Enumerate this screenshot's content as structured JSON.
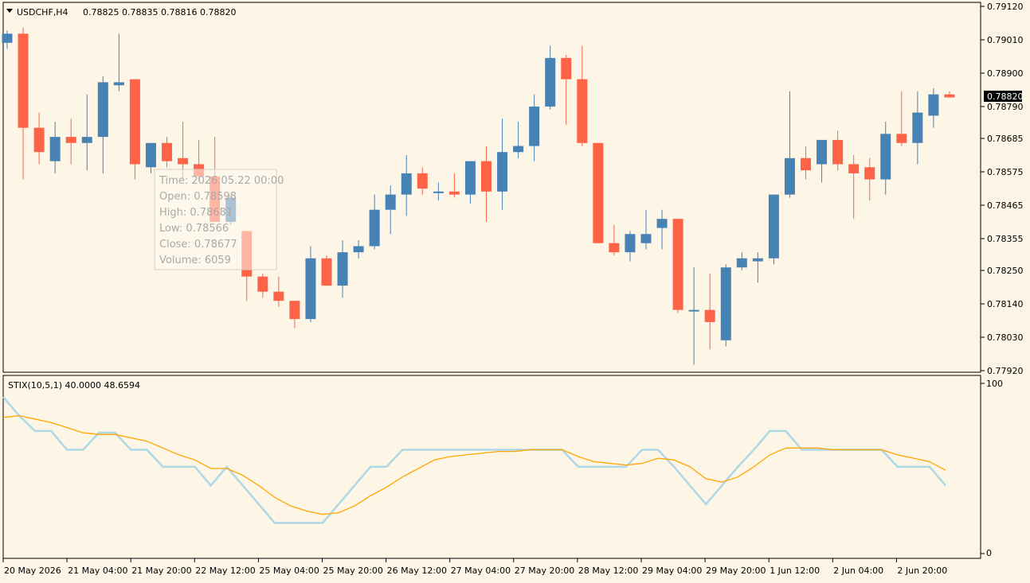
{
  "header": {
    "symbol_label": "USDCHF,H4",
    "ohlc_label": "0.78825 0.78835 0.78816 0.78820"
  },
  "indicator": {
    "label": "STIX(10,5,1) 40.0000 48.6594",
    "scale_top": "100",
    "scale_bottom": "0"
  },
  "current_price": "0.78820",
  "tooltip": {
    "time": "Time: 2026.05.22 00:00",
    "open": "Open: 0.78598",
    "high": "High: 0.78681",
    "low": "Low:  0.78566",
    "close": "Close: 0.78677",
    "volume": "Volume: 6059"
  },
  "colors": {
    "background": "#fdf5e6",
    "bull": "#4682b4",
    "bear": "#ff6347",
    "stix_line": "#add8e6",
    "signal_line": "#ffa500",
    "axis": "#000000",
    "price_tag_bg": "#000000",
    "price_tag_text": "#ffffff"
  },
  "chart_data": [
    {
      "type": "candlestick",
      "title": "USDCHF,H4",
      "price_range": [
        0.7788,
        0.7916
      ],
      "y_ticks": [
        "0.79120",
        "0.79010",
        "0.78900",
        "0.78790",
        "0.78685",
        "0.78575",
        "0.78465",
        "0.78355",
        "0.78250",
        "0.78140",
        "0.78030",
        "0.77920"
      ],
      "x_ticks": [
        "20 May 2026",
        "21 May 04:00",
        "21 May 20:00",
        "22 May 12:00",
        "25 May 04:00",
        "25 May 20:00",
        "26 May 12:00",
        "27 May 04:00",
        "27 May 20:00",
        "28 May 12:00",
        "29 May 04:00",
        "29 May 20:00",
        "1 Jun 12:00",
        "2 Jun 04:00",
        "2 Jun 20:00"
      ],
      "candles": [
        {
          "o": 0.79,
          "h": 0.7904,
          "l": 0.7898,
          "c": 0.7903
        },
        {
          "o": 0.7903,
          "h": 0.7905,
          "l": 0.7855,
          "c": 0.7872
        },
        {
          "o": 0.7872,
          "h": 0.7877,
          "l": 0.786,
          "c": 0.7864
        },
        {
          "o": 0.7861,
          "h": 0.7874,
          "l": 0.7857,
          "c": 0.7869
        },
        {
          "o": 0.7869,
          "h": 0.7875,
          "l": 0.786,
          "c": 0.7867
        },
        {
          "o": 0.7867,
          "h": 0.7883,
          "l": 0.7858,
          "c": 0.7869
        },
        {
          "o": 0.7869,
          "h": 0.7889,
          "l": 0.7857,
          "c": 0.7887
        },
        {
          "o": 0.7886,
          "h": 0.7903,
          "l": 0.7884,
          "c": 0.7887
        },
        {
          "o": 0.7888,
          "h": 0.7888,
          "l": 0.7855,
          "c": 0.786
        },
        {
          "o": 0.7859,
          "h": 0.7867,
          "l": 0.7857,
          "c": 0.7867
        },
        {
          "o": 0.7867,
          "h": 0.7869,
          "l": 0.7859,
          "c": 0.7861
        },
        {
          "o": 0.7862,
          "h": 0.7874,
          "l": 0.7855,
          "c": 0.786
        },
        {
          "o": 0.786,
          "h": 0.7868,
          "l": 0.7855,
          "c": 0.7856
        },
        {
          "o": 0.7856,
          "h": 0.7869,
          "l": 0.7841,
          "c": 0.7841
        },
        {
          "o": 0.7841,
          "h": 0.785,
          "l": 0.784,
          "c": 0.7849
        },
        {
          "o": 0.7838,
          "h": 0.7838,
          "l": 0.7815,
          "c": 0.7823
        },
        {
          "o": 0.7823,
          "h": 0.7824,
          "l": 0.7816,
          "c": 0.7818
        },
        {
          "o": 0.7818,
          "h": 0.7823,
          "l": 0.7813,
          "c": 0.7815
        },
        {
          "o": 0.7815,
          "h": 0.7815,
          "l": 0.7806,
          "c": 0.7809
        },
        {
          "o": 0.7809,
          "h": 0.7833,
          "l": 0.7808,
          "c": 0.7829
        },
        {
          "o": 0.7829,
          "h": 0.783,
          "l": 0.782,
          "c": 0.782
        },
        {
          "o": 0.782,
          "h": 0.7835,
          "l": 0.7816,
          "c": 0.7831
        },
        {
          "o": 0.7831,
          "h": 0.7835,
          "l": 0.7829,
          "c": 0.7833
        },
        {
          "o": 0.7833,
          "h": 0.785,
          "l": 0.7832,
          "c": 0.7845
        },
        {
          "o": 0.7845,
          "h": 0.7853,
          "l": 0.7837,
          "c": 0.785
        },
        {
          "o": 0.785,
          "h": 0.7863,
          "l": 0.7843,
          "c": 0.7857
        },
        {
          "o": 0.7857,
          "h": 0.7859,
          "l": 0.785,
          "c": 0.7852
        },
        {
          "o": 0.7851,
          "h": 0.7854,
          "l": 0.7848,
          "c": 0.7851
        },
        {
          "o": 0.7851,
          "h": 0.7857,
          "l": 0.7849,
          "c": 0.785
        },
        {
          "o": 0.785,
          "h": 0.7861,
          "l": 0.7847,
          "c": 0.7861
        },
        {
          "o": 0.7861,
          "h": 0.7866,
          "l": 0.7841,
          "c": 0.7851
        },
        {
          "o": 0.7851,
          "h": 0.7875,
          "l": 0.7845,
          "c": 0.7864
        },
        {
          "o": 0.7864,
          "h": 0.7874,
          "l": 0.7862,
          "c": 0.7866
        },
        {
          "o": 0.7866,
          "h": 0.7883,
          "l": 0.7861,
          "c": 0.7879
        },
        {
          "o": 0.7879,
          "h": 0.7899,
          "l": 0.7878,
          "c": 0.7895
        },
        {
          "o": 0.7895,
          "h": 0.7896,
          "l": 0.7873,
          "c": 0.7888
        },
        {
          "o": 0.7888,
          "h": 0.7899,
          "l": 0.7866,
          "c": 0.7867
        },
        {
          "o": 0.7867,
          "h": 0.7867,
          "l": 0.7834,
          "c": 0.7834
        },
        {
          "o": 0.7834,
          "h": 0.784,
          "l": 0.783,
          "c": 0.7831
        },
        {
          "o": 0.7831,
          "h": 0.7838,
          "l": 0.7828,
          "c": 0.7837
        },
        {
          "o": 0.7834,
          "h": 0.7845,
          "l": 0.7832,
          "c": 0.7837
        },
        {
          "o": 0.7839,
          "h": 0.7845,
          "l": 0.7832,
          "c": 0.7842
        },
        {
          "o": 0.7842,
          "h": 0.7842,
          "l": 0.7811,
          "c": 0.7812
        },
        {
          "o": 0.7812,
          "h": 0.7826,
          "l": 0.7794,
          "c": 0.7812
        },
        {
          "o": 0.7812,
          "h": 0.7824,
          "l": 0.7799,
          "c": 0.7808
        },
        {
          "o": 0.7802,
          "h": 0.7827,
          "l": 0.78,
          "c": 0.7826
        },
        {
          "o": 0.7826,
          "h": 0.7831,
          "l": 0.7825,
          "c": 0.7829
        },
        {
          "o": 0.7828,
          "h": 0.7831,
          "l": 0.7821,
          "c": 0.7829
        },
        {
          "o": 0.7829,
          "h": 0.785,
          "l": 0.7827,
          "c": 0.785
        },
        {
          "o": 0.785,
          "h": 0.7884,
          "l": 0.7849,
          "c": 0.7862
        },
        {
          "o": 0.7862,
          "h": 0.7866,
          "l": 0.7855,
          "c": 0.7858
        },
        {
          "o": 0.786,
          "h": 0.7868,
          "l": 0.7854,
          "c": 0.7868
        },
        {
          "o": 0.7868,
          "h": 0.7871,
          "l": 0.7858,
          "c": 0.786
        },
        {
          "o": 0.786,
          "h": 0.7863,
          "l": 0.7842,
          "c": 0.7857
        },
        {
          "o": 0.7859,
          "h": 0.7862,
          "l": 0.7848,
          "c": 0.7855
        },
        {
          "o": 0.7855,
          "h": 0.7874,
          "l": 0.785,
          "c": 0.787
        },
        {
          "o": 0.787,
          "h": 0.7884,
          "l": 0.7866,
          "c": 0.7867
        },
        {
          "o": 0.7867,
          "h": 0.7884,
          "l": 0.786,
          "c": 0.7877
        },
        {
          "o": 0.7876,
          "h": 0.7885,
          "l": 0.7872,
          "c": 0.7883
        },
        {
          "o": 0.7883,
          "h": 0.7884,
          "l": 0.7882,
          "c": 0.7882
        }
      ]
    },
    {
      "type": "line",
      "title": "STIX(10,5,1)",
      "ylim": [
        0,
        100
      ],
      "series": [
        {
          "values": [
            92,
            81,
            72,
            72,
            61,
            61,
            71,
            71,
            61,
            61,
            51,
            51,
            51,
            40,
            51,
            40,
            29,
            18,
            18,
            18,
            18,
            29,
            40,
            51,
            51,
            61,
            61,
            61,
            61,
            61,
            61,
            61,
            61,
            61,
            61,
            61,
            51,
            51,
            51,
            51,
            61,
            61,
            51,
            40,
            29,
            40,
            51,
            61,
            72,
            72,
            61,
            61,
            61,
            61,
            61,
            61,
            51,
            51,
            51,
            40
          ]
        },
        {
          "values": [
            80,
            81,
            79,
            77,
            74,
            71,
            70,
            70,
            68,
            66,
            62,
            58,
            55,
            50,
            50,
            46,
            40,
            33,
            28,
            25,
            23,
            24,
            28,
            34,
            39,
            45,
            50,
            55,
            57,
            58,
            59,
            60,
            60,
            61,
            61,
            61,
            57,
            54,
            53,
            52,
            53,
            56,
            55,
            51,
            44,
            42,
            45,
            51,
            58,
            62,
            62,
            62,
            61,
            61,
            61,
            61,
            58,
            56,
            54,
            49
          ]
        }
      ]
    }
  ]
}
